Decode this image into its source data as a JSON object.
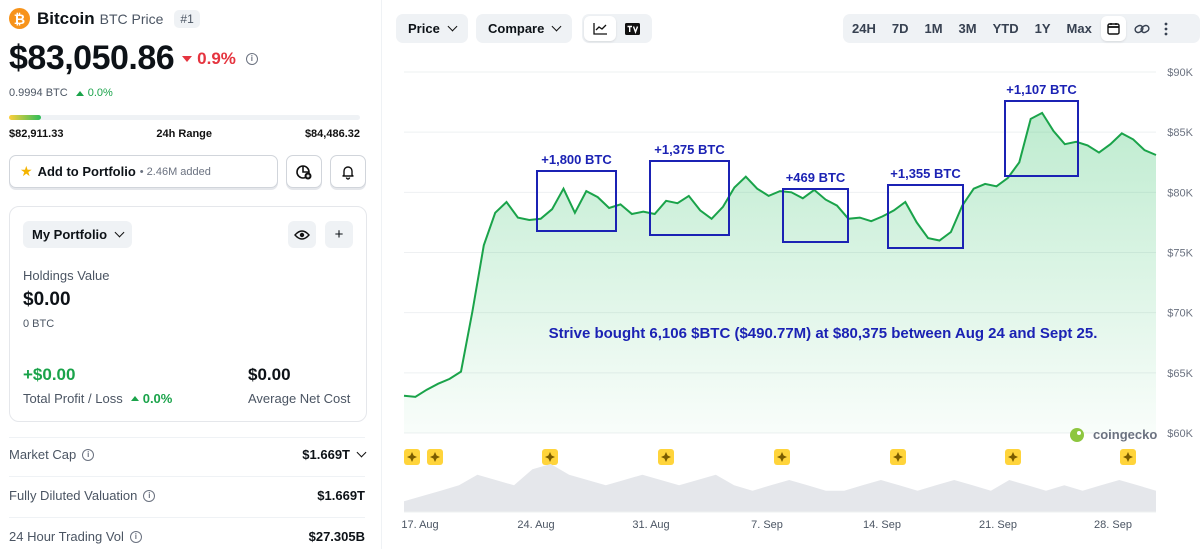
{
  "coin": {
    "logo_glyph": "₿",
    "name": "Bitcoin",
    "subtitle": "BTC Price",
    "rank": "#1",
    "price": "$83,050.86",
    "change_24h": "0.9%",
    "btc_value": "0.9994 BTC",
    "btc_change": "0.0%",
    "range_low": "$82,911.33",
    "range_label": "24h Range",
    "range_high": "$84,486.32",
    "range_fill_pct": 9
  },
  "actions": {
    "add_label": "Add to Portfolio",
    "added_count": "• 2.46M added"
  },
  "portfolio": {
    "dropdown_label": "My Portfolio",
    "holdings_label": "Holdings Value",
    "holdings_value": "$0.00",
    "holdings_btc": "0 BTC",
    "profit_value": "+$0.00",
    "profit_label": "Total Profit / Loss",
    "profit_pct": "0.0%",
    "net_cost_value": "$0.00",
    "net_cost_label": "Average Net Cost",
    "add_glyph": "+"
  },
  "stats": [
    {
      "label": "Market Cap",
      "value": "$1.669T"
    },
    {
      "label": "Fully Diluted Valuation",
      "value": "$1.669T"
    },
    {
      "label": "24 Hour Trading Vol",
      "value": "$27.305B"
    }
  ],
  "toolbar": {
    "price_label": "Price",
    "compare_label": "Compare",
    "ranges": [
      "24H",
      "7D",
      "1M",
      "3M",
      "YTD",
      "1Y",
      "Max"
    ]
  },
  "colors": {
    "accent_green": "#1aa34a",
    "down_red": "#e5343f",
    "annotation_blue": "#1b22b4",
    "btc_orange": "#f7931a"
  },
  "chart_data": {
    "type": "area",
    "y_ticks": [
      "$90K",
      "$85K",
      "$80K",
      "$75K",
      "$70K",
      "$65K",
      "$60K"
    ],
    "ylim": [
      60000,
      90000
    ],
    "x_ticks": [
      "17. Aug",
      "24. Aug",
      "31. Aug",
      "7. Sep",
      "14. Sep",
      "21. Sep",
      "28. Sep"
    ],
    "price_series": [
      63100,
      63000,
      63600,
      64100,
      64500,
      65100,
      70100,
      75600,
      78300,
      79200,
      77900,
      77700,
      77800,
      78600,
      80300,
      78300,
      80100,
      79600,
      78700,
      79000,
      78200,
      78400,
      78200,
      79300,
      79100,
      79700,
      78500,
      77800,
      78800,
      80400,
      81300,
      80300,
      79700,
      80100,
      80000,
      79500,
      80200,
      79400,
      78900,
      77800,
      77900,
      77600,
      78000,
      78500,
      79200,
      77500,
      76200,
      76000,
      76700,
      78900,
      80300,
      80700,
      80500,
      81200,
      82500,
      86100,
      86600,
      85100,
      84000,
      84200,
      83900,
      83300,
      84000,
      84900,
      84400,
      83500,
      83100
    ],
    "annotations": [
      {
        "label": "+1,800 BTC"
      },
      {
        "label": "+1,375 BTC"
      },
      {
        "label": "+469 BTC"
      },
      {
        "label": "+1,355 BTC"
      },
      {
        "label": "+1,107 BTC"
      }
    ],
    "caption": "Strive bought 6,106 $BTC ($490.77M) at $80,375 between Aug 24 and Sept 25.",
    "watermark": "coingecko",
    "event_markers": 8,
    "volume_series": [
      2,
      3,
      4,
      5,
      7,
      6,
      5,
      8,
      9,
      7,
      6,
      5,
      6,
      7,
      6,
      5,
      6,
      7,
      5,
      4,
      5,
      6,
      5,
      4,
      4,
      5,
      6,
      5,
      4,
      5,
      6,
      5,
      4,
      6,
      5,
      4,
      5,
      4,
      5,
      6,
      5,
      4
    ]
  }
}
